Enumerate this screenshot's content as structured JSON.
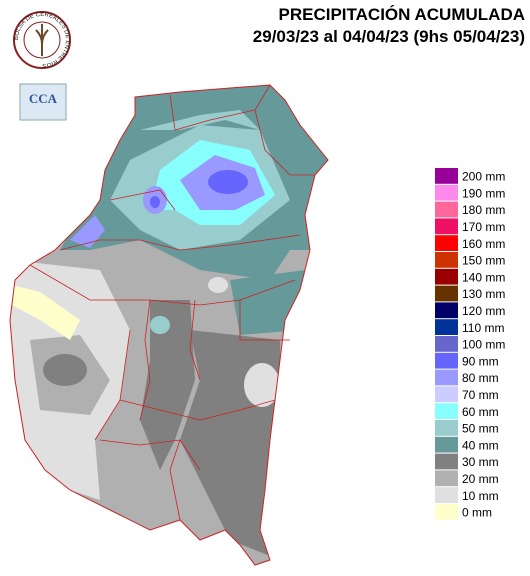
{
  "header": {
    "title": "PRECIPITACIÓN ACUMULADA",
    "subtitle": "29/03/23 al 04/04/23 (9hs 05/04/23)"
  },
  "logo": {
    "ring_text": "BOLSA DE CEREALES DE ENTRE RIOS",
    "badge": "CCA"
  },
  "legend": {
    "items": [
      {
        "label": "200 mm",
        "color": "#990099"
      },
      {
        "label": "190 mm",
        "color": "#ff88ee"
      },
      {
        "label": "180 mm",
        "color": "#ff6699"
      },
      {
        "label": "170 mm",
        "color": "#ee1166"
      },
      {
        "label": "160 mm",
        "color": "#ff0000"
      },
      {
        "label": "150 mm",
        "color": "#cc3300"
      },
      {
        "label": "140 mm",
        "color": "#990000"
      },
      {
        "label": "130 mm",
        "color": "#663300"
      },
      {
        "label": "120 mm",
        "color": "#000066"
      },
      {
        "label": "110 mm",
        "color": "#003399"
      },
      {
        "label": "100 mm",
        "color": "#6666cc"
      },
      {
        "label": "90 mm",
        "color": "#6666ff"
      },
      {
        "label": "80 mm",
        "color": "#9999ff"
      },
      {
        "label": "70 mm",
        "color": "#ccccff"
      },
      {
        "label": "60 mm",
        "color": "#88ffff"
      },
      {
        "label": "50 mm",
        "color": "#99cccc"
      },
      {
        "label": "40 mm",
        "color": "#669999"
      },
      {
        "label": "30 mm",
        "color": "#808080"
      },
      {
        "label": "20 mm",
        "color": "#b0b0b0"
      },
      {
        "label": "10 mm",
        "color": "#e0e0e0"
      },
      {
        "label": "0 mm",
        "color": "#ffffcc"
      }
    ]
  }
}
